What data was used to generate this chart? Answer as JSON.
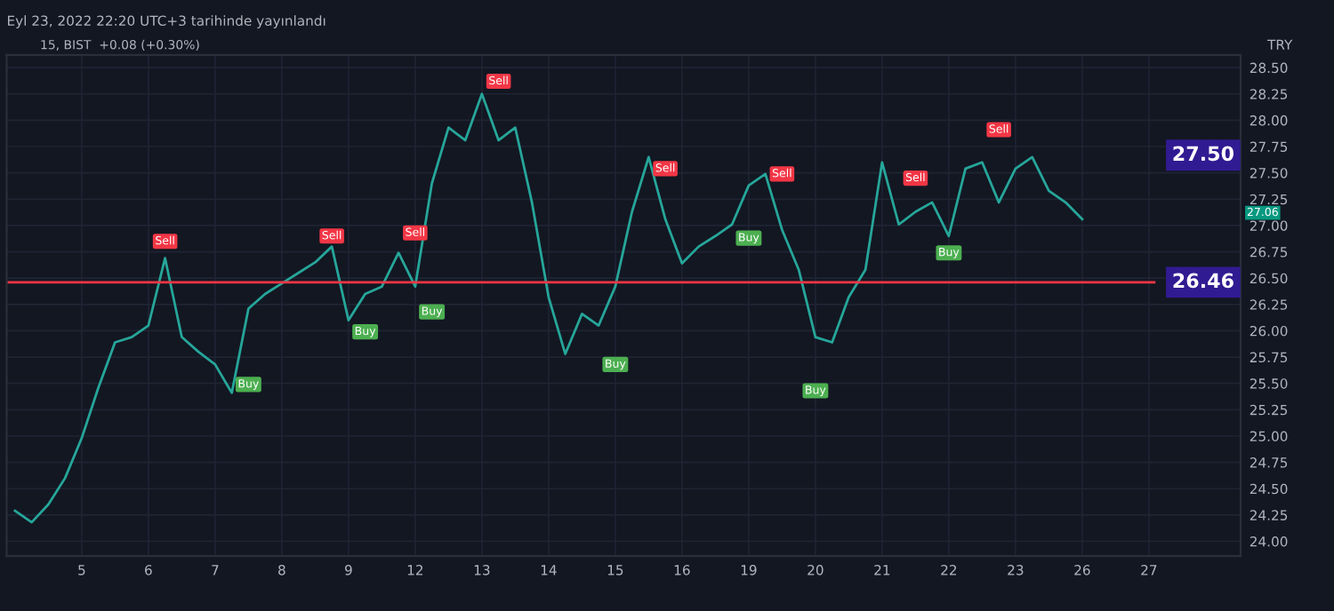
{
  "chart_data": {
    "type": "line",
    "title": "Eyl 23, 2022 22:20 UTC+3 tarihinde yayınlandı",
    "subtitle": "15, BIST  +0.08 (+0.30%)",
    "ylabel": "TRY",
    "categories": [
      null,
      null,
      null,
      null,
      "5",
      null,
      null,
      null,
      "6",
      null,
      null,
      null,
      "7",
      null,
      null,
      null,
      "8",
      null,
      null,
      null,
      "9",
      null,
      null,
      null,
      "12",
      null,
      null,
      null,
      "13",
      null,
      null,
      null,
      "14",
      null,
      null,
      null,
      "15",
      null,
      null,
      null,
      "16",
      null,
      null,
      null,
      "19",
      null,
      null,
      null,
      "20",
      null,
      null,
      null,
      "21",
      null,
      null,
      null,
      "22",
      null,
      null,
      null,
      "23",
      null,
      null,
      null,
      "26",
      null,
      null,
      null,
      "27"
    ],
    "series": [
      {
        "color": "#26a69a",
        "values": [
          24.29,
          24.18,
          24.35,
          24.6,
          24.98,
          25.46,
          25.89,
          25.94,
          26.05,
          26.69,
          25.94,
          25.8,
          25.68,
          25.41,
          26.21,
          26.35,
          26.45,
          26.55,
          26.65,
          26.8,
          26.1,
          26.35,
          26.42,
          26.74,
          26.42,
          27.4,
          27.93,
          27.81,
          28.25,
          27.81,
          27.93,
          27.22,
          26.32,
          25.78,
          26.16,
          26.05,
          26.42,
          27.13,
          27.65,
          27.06,
          26.64,
          26.8,
          26.9,
          27.01,
          27.38,
          27.49,
          26.96,
          26.58,
          25.94,
          25.89,
          26.32,
          26.58,
          27.6,
          27.01,
          27.13,
          27.22,
          26.9,
          27.54,
          27.6,
          27.22,
          27.54,
          27.65,
          27.33,
          27.22,
          27.06,
          null,
          null,
          null,
          null
        ]
      },
      {
        "type": "scatter",
        "name": "Sell",
        "color": "#f23645",
        "values": [
          null,
          null,
          null,
          null,
          null,
          null,
          null,
          null,
          null,
          26.85,
          null,
          null,
          null,
          null,
          null,
          null,
          null,
          null,
          null,
          26.9,
          null,
          null,
          null,
          null,
          26.93,
          null,
          null,
          null,
          null,
          28.37,
          null,
          null,
          null,
          null,
          null,
          null,
          null,
          null,
          null,
          27.54,
          null,
          null,
          null,
          null,
          null,
          null,
          27.49,
          null,
          null,
          null,
          null,
          null,
          null,
          null,
          27.45,
          null,
          null,
          null,
          null,
          27.91,
          null,
          null,
          null,
          null,
          null,
          null,
          null,
          null,
          null
        ]
      },
      {
        "type": "scatter",
        "name": "Buy",
        "color": "#4caf50",
        "values": [
          null,
          null,
          null,
          null,
          null,
          null,
          null,
          null,
          null,
          null,
          null,
          null,
          null,
          null,
          25.49,
          null,
          null,
          null,
          null,
          null,
          null,
          25.99,
          null,
          null,
          null,
          26.18,
          null,
          null,
          null,
          null,
          null,
          null,
          null,
          null,
          null,
          null,
          25.68,
          null,
          null,
          null,
          null,
          null,
          null,
          null,
          26.88,
          null,
          null,
          null,
          25.43,
          null,
          null,
          null,
          null,
          null,
          null,
          null,
          26.74,
          null,
          null,
          null,
          null,
          null,
          null,
          null,
          null,
          null,
          null,
          null,
          null
        ]
      }
    ],
    "ylim": [
      23.86,
      28.62
    ],
    "yticks": [
      {
        "value": 24,
        "label": "24.00"
      },
      {
        "value": 24.25,
        "label": "24.25"
      },
      {
        "value": 24.5,
        "label": "24.50"
      },
      {
        "value": 24.75,
        "label": "24.75"
      },
      {
        "value": 25,
        "label": "25.00"
      },
      {
        "value": 25.25,
        "label": "25.25"
      },
      {
        "value": 25.5,
        "label": "25.50"
      },
      {
        "value": 25.75,
        "label": "25.75"
      },
      {
        "value": 26,
        "label": "26.00"
      },
      {
        "value": 26.25,
        "label": "26.25"
      },
      {
        "value": 26.5,
        "label": "26.50"
      },
      {
        "value": 26.75,
        "label": "26.75"
      },
      {
        "value": 27,
        "label": "27.00"
      },
      {
        "value": 27.25,
        "label": "27.25"
      },
      {
        "value": 27.5,
        "label": "27.50"
      },
      {
        "value": 27.75,
        "label": "27.75"
      },
      {
        "value": 28,
        "label": "28.00"
      },
      {
        "value": 28.25,
        "label": "28.25"
      },
      {
        "value": 28.5,
        "label": "28.50"
      }
    ],
    "ref_lines": [
      {
        "axis": "y",
        "value": 26.46,
        "label": "26.46",
        "color": "#f23645"
      }
    ],
    "annotations": [
      "27.50",
      "27.06"
    ],
    "grid": true
  }
}
